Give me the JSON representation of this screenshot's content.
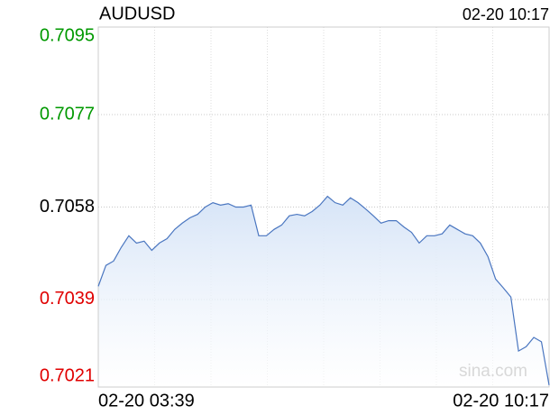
{
  "chart_data": {
    "type": "line",
    "title": "AUDUSD",
    "timestamp": "02-20 10:17",
    "watermark": "sina.com",
    "categories": [
      "02-20 03:39",
      null,
      null,
      null,
      null,
      null,
      null,
      null,
      null,
      null,
      null,
      null,
      null,
      null,
      null,
      null,
      null,
      null,
      null,
      null,
      null,
      null,
      null,
      null,
      null,
      null,
      null,
      null,
      null,
      null,
      null,
      null,
      null,
      null,
      null,
      null,
      null,
      null,
      null,
      null,
      null,
      null,
      null,
      null,
      null,
      null,
      null,
      null,
      null,
      null,
      null,
      null,
      null,
      null,
      null,
      null,
      null,
      null,
      null,
      "02-20 10:17"
    ],
    "series": [
      {
        "name": "AUDUSD",
        "color": "#4a76c0",
        "values": [
          0.70417,
          0.7046,
          0.70469,
          0.70497,
          0.70521,
          0.70506,
          0.7051,
          0.70491,
          0.70506,
          0.70515,
          0.70534,
          0.70547,
          0.70558,
          0.70565,
          0.7058,
          0.70589,
          0.70584,
          0.70587,
          0.7058,
          0.7058,
          0.70584,
          0.70521,
          0.70521,
          0.70534,
          0.70543,
          0.70562,
          0.70565,
          0.70562,
          0.70571,
          0.70584,
          0.70602,
          0.70589,
          0.70584,
          0.70599,
          0.70589,
          0.70576,
          0.70562,
          0.70547,
          0.70552,
          0.70552,
          0.70539,
          0.70528,
          0.70506,
          0.70521,
          0.70521,
          0.70525,
          0.70543,
          0.70534,
          0.70525,
          0.70521,
          0.70506,
          0.70478,
          0.70432,
          0.70414,
          0.70395,
          0.70284,
          0.70293,
          0.70312,
          0.70303,
          0.70214
        ]
      }
    ],
    "ylim": [
      0.7021,
      0.7095
    ],
    "yticks": [
      0.7021,
      0.7039,
      0.7058,
      0.7077,
      0.7095
    ],
    "ytick_colors": [
      "#e00000",
      "#e00000",
      "#000000",
      "#009900",
      "#009900"
    ],
    "grid": true
  }
}
